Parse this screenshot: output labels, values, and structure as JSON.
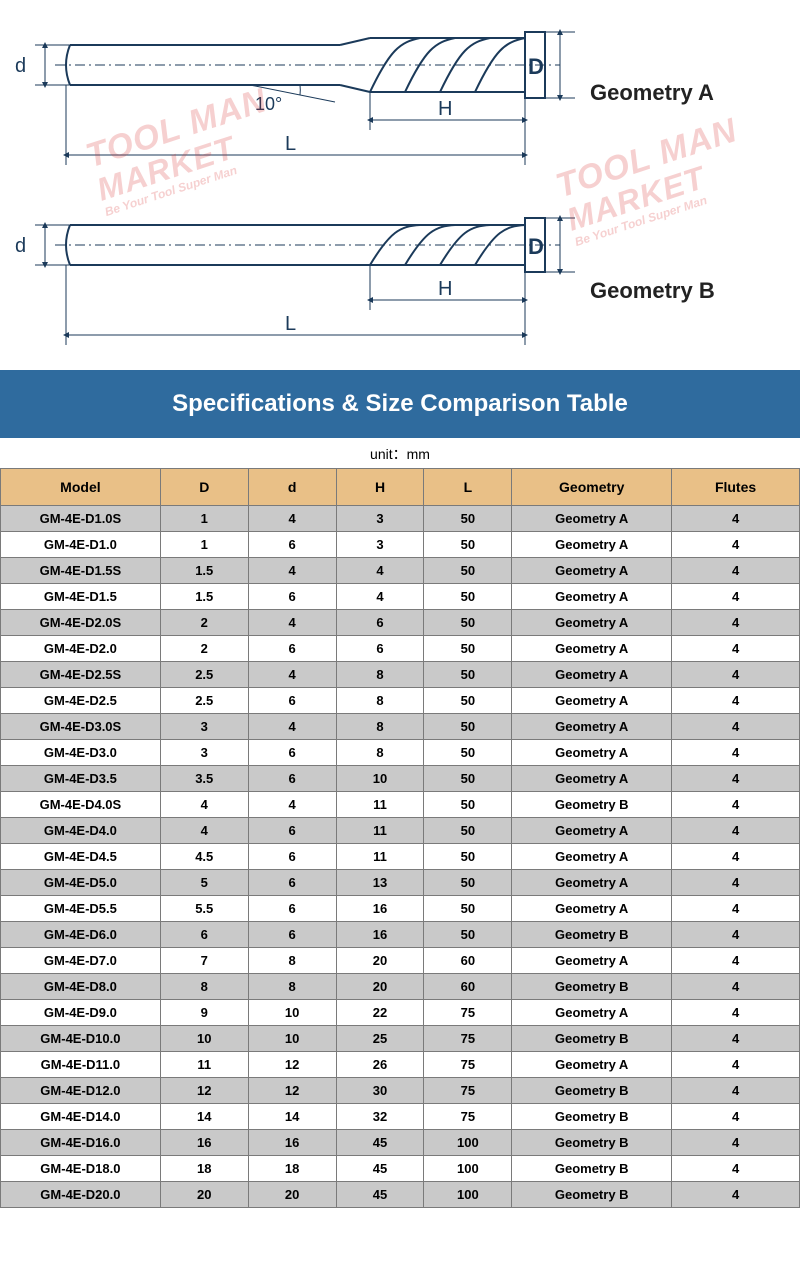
{
  "colors": {
    "title_bg": "#2f6b9e",
    "title_fg": "#ffffff",
    "header_bg": "#e9c087",
    "row_odd_bg": "#c9c9c9",
    "row_even_bg": "#ffffff",
    "border": "#7a7a7a",
    "diagram_stroke": "#1b3a5a",
    "watermark": "rgba(214,40,40,0.22)"
  },
  "watermark": {
    "line1": "TOOL MAN",
    "line2": "MARKET",
    "tagline": "Be Your Tool Super Man"
  },
  "diagram": {
    "geometry_a_label": "Geometry A",
    "geometry_b_label": "Geometry B",
    "angle_label": "10°",
    "dim_d_small": "d",
    "dim_D_big": "D",
    "dim_H": "H",
    "dim_L": "L"
  },
  "title": "Specifications & Size Comparison Table",
  "unit_label": "unit：mm",
  "table": {
    "col_widths_pct": [
      20,
      11,
      11,
      11,
      11,
      20,
      16
    ],
    "columns": [
      "Model",
      "D",
      "d",
      "H",
      "L",
      "Geometry",
      "Flutes"
    ],
    "rows": [
      [
        "GM-4E-D1.0S",
        "1",
        "4",
        "3",
        "50",
        "Geometry A",
        "4"
      ],
      [
        "GM-4E-D1.0",
        "1",
        "6",
        "3",
        "50",
        "Geometry A",
        "4"
      ],
      [
        "GM-4E-D1.5S",
        "1.5",
        "4",
        "4",
        "50",
        "Geometry A",
        "4"
      ],
      [
        "GM-4E-D1.5",
        "1.5",
        "6",
        "4",
        "50",
        "Geometry A",
        "4"
      ],
      [
        "GM-4E-D2.0S",
        "2",
        "4",
        "6",
        "50",
        "Geometry A",
        "4"
      ],
      [
        "GM-4E-D2.0",
        "2",
        "6",
        "6",
        "50",
        "Geometry A",
        "4"
      ],
      [
        "GM-4E-D2.5S",
        "2.5",
        "4",
        "8",
        "50",
        "Geometry A",
        "4"
      ],
      [
        "GM-4E-D2.5",
        "2.5",
        "6",
        "8",
        "50",
        "Geometry A",
        "4"
      ],
      [
        "GM-4E-D3.0S",
        "3",
        "4",
        "8",
        "50",
        "Geometry A",
        "4"
      ],
      [
        "GM-4E-D3.0",
        "3",
        "6",
        "8",
        "50",
        "Geometry A",
        "4"
      ],
      [
        "GM-4E-D3.5",
        "3.5",
        "6",
        "10",
        "50",
        "Geometry A",
        "4"
      ],
      [
        "GM-4E-D4.0S",
        "4",
        "4",
        "11",
        "50",
        "Geometry B",
        "4"
      ],
      [
        "GM-4E-D4.0",
        "4",
        "6",
        "11",
        "50",
        "Geometry A",
        "4"
      ],
      [
        "GM-4E-D4.5",
        "4.5",
        "6",
        "11",
        "50",
        "Geometry A",
        "4"
      ],
      [
        "GM-4E-D5.0",
        "5",
        "6",
        "13",
        "50",
        "Geometry A",
        "4"
      ],
      [
        "GM-4E-D5.5",
        "5.5",
        "6",
        "16",
        "50",
        "Geometry A",
        "4"
      ],
      [
        "GM-4E-D6.0",
        "6",
        "6",
        "16",
        "50",
        "Geometry B",
        "4"
      ],
      [
        "GM-4E-D7.0",
        "7",
        "8",
        "20",
        "60",
        "Geometry A",
        "4"
      ],
      [
        "GM-4E-D8.0",
        "8",
        "8",
        "20",
        "60",
        "Geometry B",
        "4"
      ],
      [
        "GM-4E-D9.0",
        "9",
        "10",
        "22",
        "75",
        "Geometry A",
        "4"
      ],
      [
        "GM-4E-D10.0",
        "10",
        "10",
        "25",
        "75",
        "Geometry B",
        "4"
      ],
      [
        "GM-4E-D11.0",
        "11",
        "12",
        "26",
        "75",
        "Geometry A",
        "4"
      ],
      [
        "GM-4E-D12.0",
        "12",
        "12",
        "30",
        "75",
        "Geometry B",
        "4"
      ],
      [
        "GM-4E-D14.0",
        "14",
        "14",
        "32",
        "75",
        "Geometry B",
        "4"
      ],
      [
        "GM-4E-D16.0",
        "16",
        "16",
        "45",
        "100",
        "Geometry B",
        "4"
      ],
      [
        "GM-4E-D18.0",
        "18",
        "18",
        "45",
        "100",
        "Geometry B",
        "4"
      ],
      [
        "GM-4E-D20.0",
        "20",
        "20",
        "45",
        "100",
        "Geometry B",
        "4"
      ]
    ]
  }
}
